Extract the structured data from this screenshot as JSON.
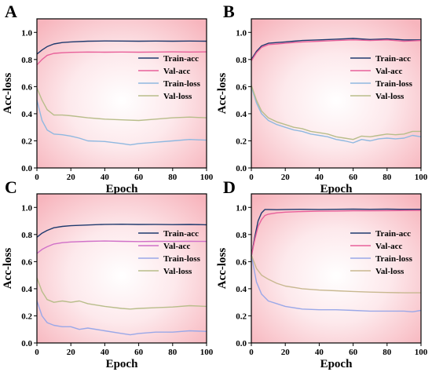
{
  "chart_data": [
    {
      "panel": "A",
      "type": "line",
      "xlabel": "Epoch",
      "ylabel": "Acc-loss",
      "xlim": [
        0,
        100
      ],
      "ylim": [
        0.0,
        1.1
      ],
      "xticks": [
        "0",
        "20",
        "40",
        "60",
        "80",
        "100"
      ],
      "yticks": [
        "0.0",
        "0.2",
        "0.4",
        "0.6",
        "0.8",
        "1.0"
      ],
      "legend_position": "right",
      "series": [
        {
          "name": "Train-acc",
          "color": "#1f3a6e",
          "x": [
            0,
            3,
            6,
            10,
            15,
            20,
            30,
            40,
            50,
            60,
            70,
            80,
            90,
            100
          ],
          "y": [
            0.84,
            0.87,
            0.895,
            0.915,
            0.925,
            0.93,
            0.935,
            0.937,
            0.936,
            0.935,
            0.936,
            0.935,
            0.936,
            0.935
          ]
        },
        {
          "name": "Val-acc",
          "color": "#e8609a",
          "x": [
            0,
            3,
            6,
            10,
            15,
            20,
            30,
            40,
            50,
            60,
            70,
            80,
            90,
            100
          ],
          "y": [
            0.76,
            0.8,
            0.83,
            0.845,
            0.85,
            0.853,
            0.855,
            0.854,
            0.855,
            0.854,
            0.855,
            0.856,
            0.855,
            0.856
          ]
        },
        {
          "name": "Train-loss",
          "color": "#8fb8e0",
          "x": [
            0,
            3,
            6,
            10,
            15,
            20,
            25,
            30,
            40,
            50,
            55,
            60,
            70,
            80,
            90,
            100
          ],
          "y": [
            0.5,
            0.35,
            0.28,
            0.25,
            0.245,
            0.235,
            0.22,
            0.2,
            0.195,
            0.18,
            0.17,
            0.18,
            0.19,
            0.2,
            0.21,
            0.205
          ]
        },
        {
          "name": "Val-loss",
          "color": "#b8bd8a",
          "x": [
            0,
            3,
            6,
            10,
            15,
            20,
            30,
            40,
            50,
            60,
            70,
            80,
            90,
            100
          ],
          "y": [
            0.59,
            0.5,
            0.43,
            0.39,
            0.39,
            0.385,
            0.37,
            0.36,
            0.355,
            0.35,
            0.36,
            0.37,
            0.375,
            0.37
          ]
        }
      ]
    },
    {
      "panel": "B",
      "type": "line",
      "xlabel": "Epoch",
      "ylabel": "Acc-loss",
      "xlim": [
        0,
        100
      ],
      "ylim": [
        0.0,
        1.1
      ],
      "xticks": [
        "0",
        "20",
        "40",
        "60",
        "80",
        "100"
      ],
      "yticks": [
        "0.0",
        "0.2",
        "0.4",
        "0.6",
        "0.8",
        "1.0"
      ],
      "legend_position": "right",
      "series": [
        {
          "name": "Train-acc",
          "color": "#1f3a6e",
          "x": [
            0,
            3,
            6,
            10,
            15,
            20,
            25,
            30,
            40,
            50,
            60,
            70,
            80,
            90,
            100
          ],
          "y": [
            0.8,
            0.86,
            0.9,
            0.92,
            0.925,
            0.93,
            0.935,
            0.94,
            0.945,
            0.95,
            0.955,
            0.948,
            0.952,
            0.945,
            0.945
          ]
        },
        {
          "name": "Val-acc",
          "color": "#e8609a",
          "x": [
            0,
            3,
            6,
            10,
            15,
            20,
            25,
            30,
            40,
            50,
            60,
            70,
            80,
            90,
            100
          ],
          "y": [
            0.79,
            0.85,
            0.89,
            0.91,
            0.915,
            0.92,
            0.925,
            0.93,
            0.935,
            0.94,
            0.945,
            0.94,
            0.945,
            0.935,
            0.94
          ]
        },
        {
          "name": "Train-loss",
          "color": "#8fb8e0",
          "x": [
            0,
            3,
            6,
            10,
            15,
            20,
            25,
            30,
            35,
            40,
            45,
            50,
            55,
            60,
            65,
            70,
            75,
            80,
            85,
            90,
            95,
            100
          ],
          "y": [
            0.6,
            0.48,
            0.4,
            0.35,
            0.32,
            0.3,
            0.28,
            0.27,
            0.25,
            0.24,
            0.23,
            0.21,
            0.2,
            0.185,
            0.21,
            0.2,
            0.215,
            0.22,
            0.215,
            0.22,
            0.24,
            0.23
          ]
        },
        {
          "name": "Val-loss",
          "color": "#b8bd8a",
          "x": [
            0,
            3,
            6,
            10,
            15,
            20,
            25,
            30,
            35,
            40,
            45,
            50,
            55,
            60,
            65,
            70,
            75,
            80,
            85,
            90,
            95,
            100
          ],
          "y": [
            0.61,
            0.5,
            0.42,
            0.37,
            0.34,
            0.32,
            0.3,
            0.29,
            0.27,
            0.26,
            0.25,
            0.23,
            0.22,
            0.21,
            0.235,
            0.23,
            0.24,
            0.25,
            0.245,
            0.25,
            0.27,
            0.27
          ]
        }
      ]
    },
    {
      "panel": "C",
      "type": "line",
      "xlabel": "Epoch",
      "ylabel": "Acc-loss",
      "xlim": [
        0,
        100
      ],
      "ylim": [
        0.0,
        1.1
      ],
      "xticks": [
        "0",
        "20",
        "40",
        "60",
        "80",
        "100"
      ],
      "yticks": [
        "0.0",
        "0.2",
        "0.4",
        "0.6",
        "0.8",
        "1.0"
      ],
      "legend_position": "right",
      "series": [
        {
          "name": "Train-acc",
          "color": "#1f3a6e",
          "x": [
            0,
            3,
            6,
            10,
            15,
            20,
            30,
            40,
            50,
            60,
            70,
            80,
            90,
            100
          ],
          "y": [
            0.78,
            0.81,
            0.83,
            0.85,
            0.86,
            0.865,
            0.87,
            0.875,
            0.876,
            0.874,
            0.875,
            0.873,
            0.874,
            0.872
          ]
        },
        {
          "name": "Val-acc",
          "color": "#d070c8",
          "x": [
            0,
            3,
            6,
            10,
            15,
            20,
            30,
            40,
            50,
            60,
            70,
            80,
            90,
            100
          ],
          "y": [
            0.66,
            0.69,
            0.71,
            0.73,
            0.74,
            0.745,
            0.75,
            0.752,
            0.75,
            0.748,
            0.75,
            0.749,
            0.75,
            0.749
          ]
        },
        {
          "name": "Train-loss",
          "color": "#9aa8e8",
          "x": [
            0,
            3,
            6,
            10,
            15,
            20,
            25,
            30,
            40,
            50,
            55,
            60,
            70,
            80,
            90,
            100
          ],
          "y": [
            0.31,
            0.2,
            0.15,
            0.13,
            0.12,
            0.12,
            0.1,
            0.11,
            0.09,
            0.07,
            0.06,
            0.07,
            0.08,
            0.08,
            0.09,
            0.085
          ]
        },
        {
          "name": "Val-loss",
          "color": "#b8bd8a",
          "x": [
            0,
            3,
            6,
            10,
            15,
            20,
            25,
            30,
            40,
            50,
            55,
            60,
            70,
            80,
            90,
            100
          ],
          "y": [
            0.48,
            0.38,
            0.32,
            0.3,
            0.31,
            0.3,
            0.31,
            0.29,
            0.27,
            0.255,
            0.25,
            0.255,
            0.26,
            0.265,
            0.275,
            0.27
          ]
        }
      ]
    },
    {
      "panel": "D",
      "type": "line",
      "xlabel": "Epoch",
      "ylabel": "Acc-loss",
      "xlim": [
        0,
        100
      ],
      "ylim": [
        0.0,
        1.1
      ],
      "xticks": [
        "0",
        "20",
        "40",
        "60",
        "80",
        "100"
      ],
      "yticks": [
        "0.0",
        "0.2",
        "0.4",
        "0.6",
        "0.8",
        "1.0"
      ],
      "legend_position": "right",
      "series": [
        {
          "name": "Train-acc",
          "color": "#1f3a6e",
          "x": [
            0,
            2,
            4,
            6,
            8,
            10,
            15,
            20,
            30,
            40,
            50,
            60,
            70,
            80,
            90,
            100
          ],
          "y": [
            0.64,
            0.78,
            0.9,
            0.96,
            0.985,
            0.985,
            0.983,
            0.985,
            0.986,
            0.985,
            0.986,
            0.987,
            0.986,
            0.987,
            0.986,
            0.986
          ]
        },
        {
          "name": "Val-acc",
          "color": "#e8609a",
          "x": [
            0,
            2,
            4,
            6,
            8,
            10,
            15,
            20,
            30,
            40,
            50,
            60,
            70,
            80,
            90,
            100
          ],
          "y": [
            0.64,
            0.76,
            0.86,
            0.91,
            0.94,
            0.95,
            0.96,
            0.965,
            0.97,
            0.972,
            0.973,
            0.975,
            0.975,
            0.976,
            0.977,
            0.978
          ]
        },
        {
          "name": "Train-loss",
          "color": "#9aa8e8",
          "x": [
            0,
            3,
            6,
            10,
            15,
            20,
            30,
            40,
            50,
            60,
            70,
            80,
            90,
            95,
            100
          ],
          "y": [
            0.65,
            0.45,
            0.36,
            0.31,
            0.29,
            0.27,
            0.25,
            0.245,
            0.245,
            0.24,
            0.235,
            0.235,
            0.235,
            0.23,
            0.24
          ]
        },
        {
          "name": "Val-loss",
          "color": "#c8b890",
          "x": [
            0,
            3,
            6,
            10,
            15,
            20,
            30,
            40,
            50,
            60,
            70,
            80,
            90,
            100
          ],
          "y": [
            0.65,
            0.55,
            0.5,
            0.47,
            0.44,
            0.42,
            0.4,
            0.39,
            0.385,
            0.38,
            0.375,
            0.372,
            0.37,
            0.37
          ]
        }
      ]
    }
  ]
}
